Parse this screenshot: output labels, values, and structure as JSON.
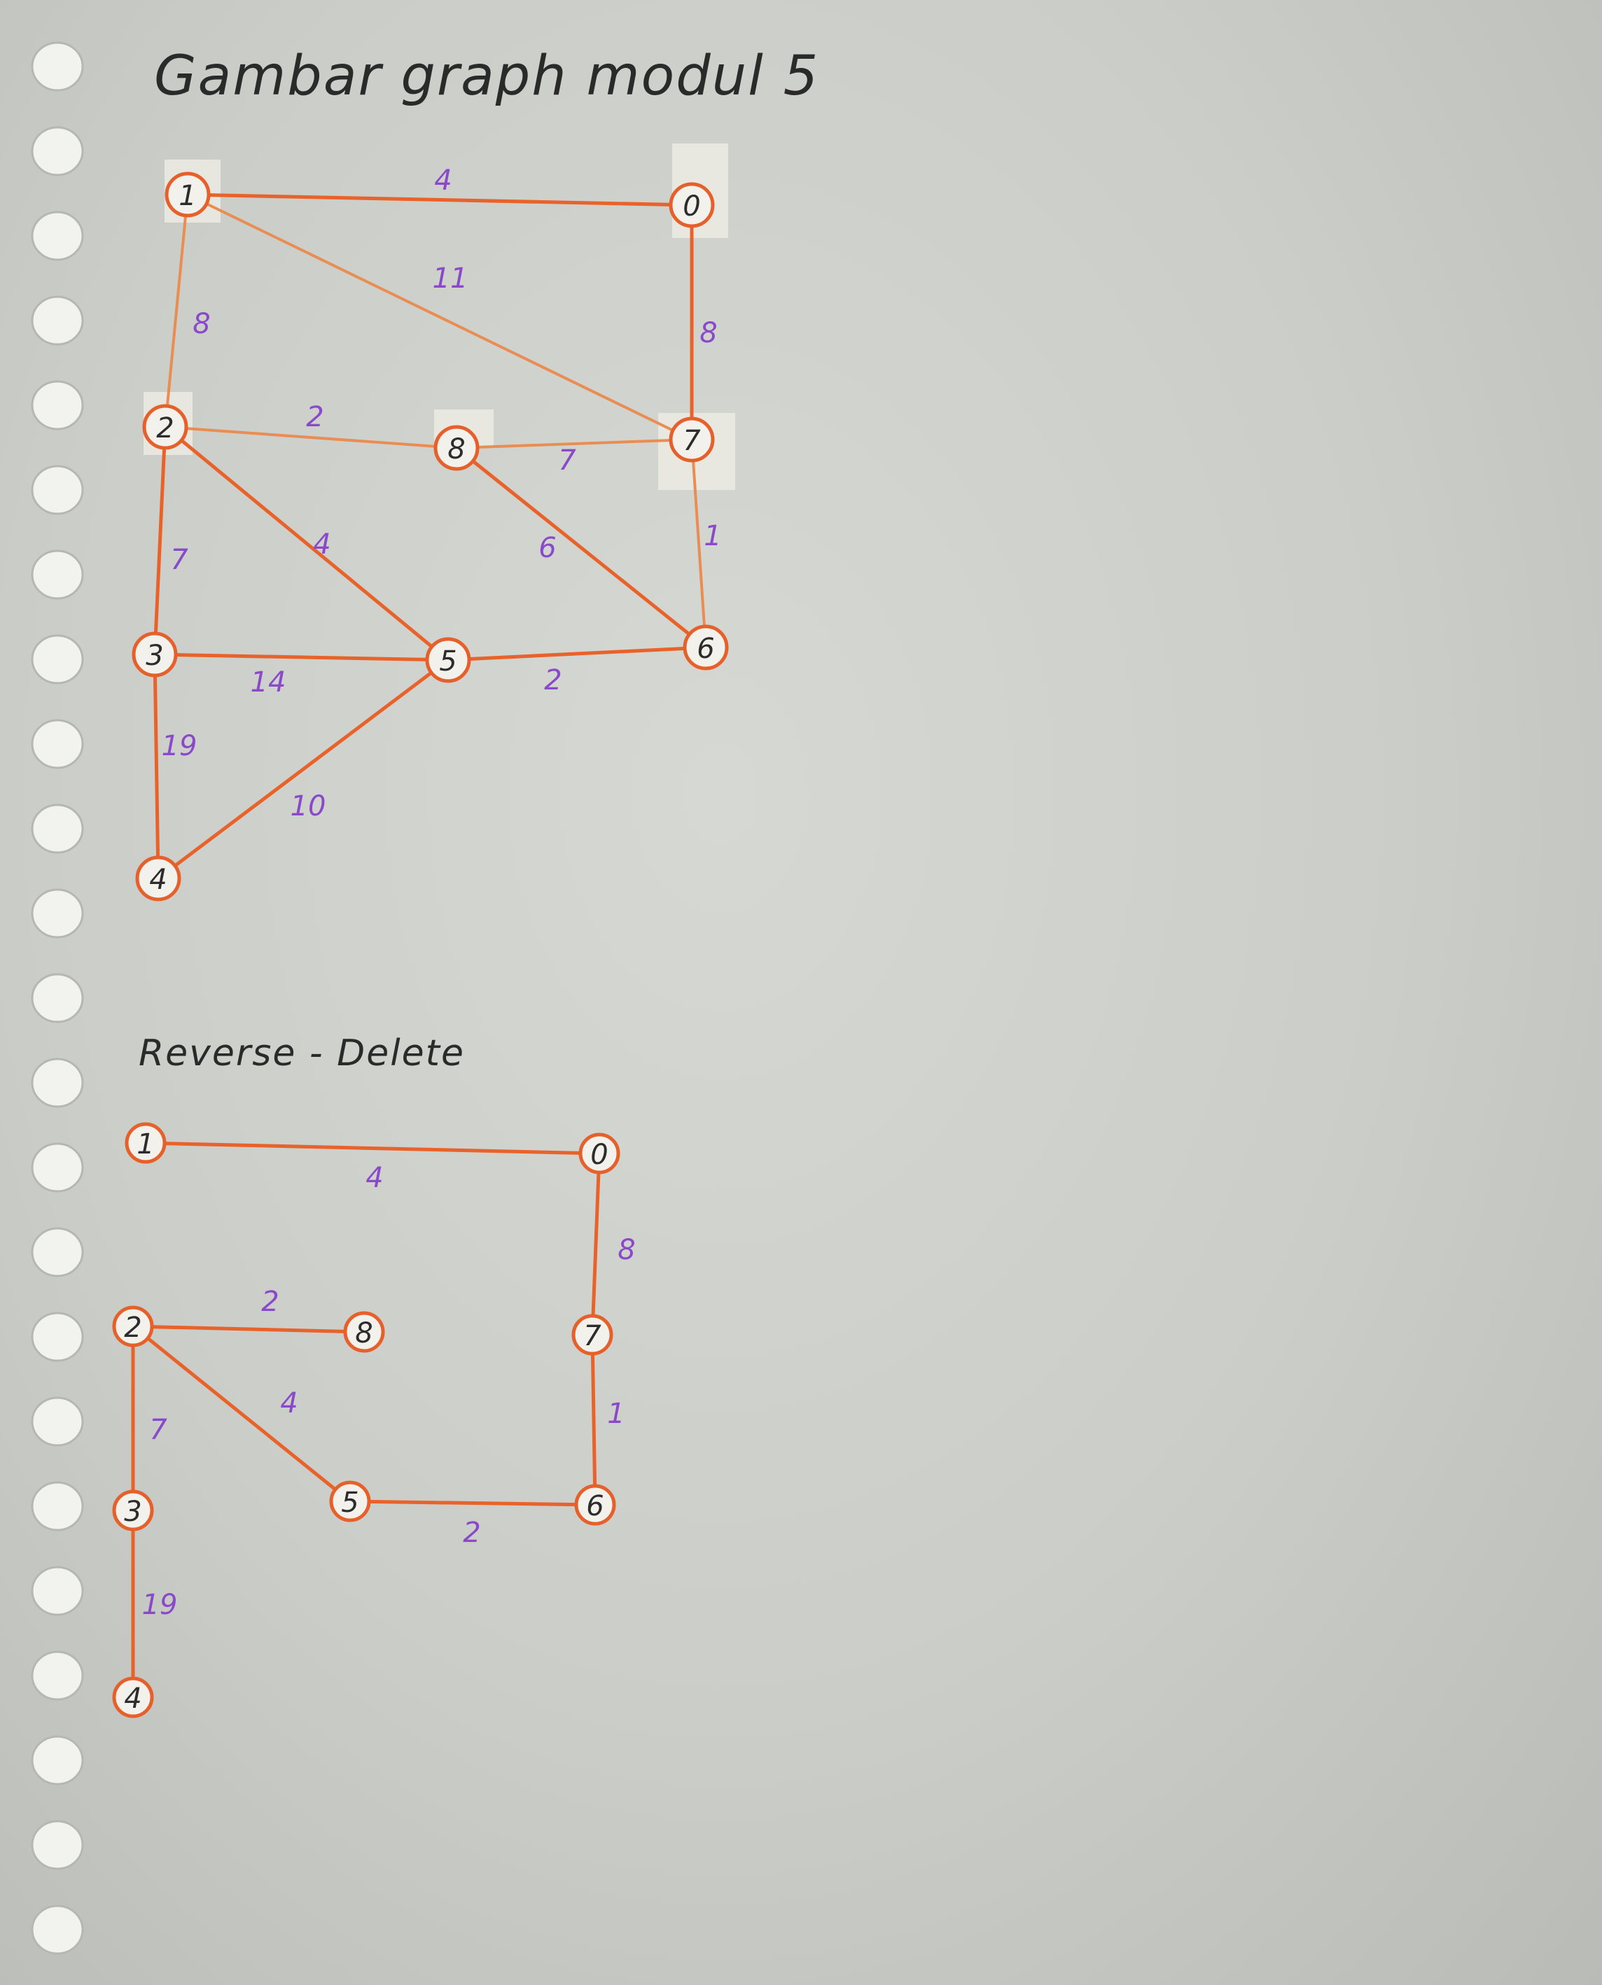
{
  "title": "Gambar graph modul 5",
  "section2_title": "Reverse - Delete",
  "graph1": {
    "nodes": [
      {
        "id": "1",
        "label": "1"
      },
      {
        "id": "0",
        "label": "0"
      },
      {
        "id": "2",
        "label": "2"
      },
      {
        "id": "8",
        "label": "8"
      },
      {
        "id": "7",
        "label": "7"
      },
      {
        "id": "3",
        "label": "3"
      },
      {
        "id": "5",
        "label": "5"
      },
      {
        "id": "6",
        "label": "6"
      },
      {
        "id": "4",
        "label": "4"
      }
    ],
    "edges": [
      {
        "from": "1",
        "to": "0",
        "weight": "4"
      },
      {
        "from": "1",
        "to": "7",
        "weight": "11"
      },
      {
        "from": "1",
        "to": "2",
        "weight": "8"
      },
      {
        "from": "0",
        "to": "7",
        "weight": "8"
      },
      {
        "from": "2",
        "to": "8",
        "weight": "2"
      },
      {
        "from": "8",
        "to": "7",
        "weight": "7"
      },
      {
        "from": "2",
        "to": "5",
        "weight": "4"
      },
      {
        "from": "8",
        "to": "6",
        "weight": "6"
      },
      {
        "from": "7",
        "to": "6",
        "weight": "1"
      },
      {
        "from": "2",
        "to": "3",
        "weight": "7"
      },
      {
        "from": "3",
        "to": "5",
        "weight": "14"
      },
      {
        "from": "5",
        "to": "6",
        "weight": "2"
      },
      {
        "from": "3",
        "to": "4",
        "weight": "19"
      },
      {
        "from": "4",
        "to": "5",
        "weight": "10"
      }
    ]
  },
  "graph2": {
    "nodes": [
      {
        "id": "1",
        "label": "1"
      },
      {
        "id": "0",
        "label": "0"
      },
      {
        "id": "2",
        "label": "2"
      },
      {
        "id": "8",
        "label": "8"
      },
      {
        "id": "7",
        "label": "7"
      },
      {
        "id": "3",
        "label": "3"
      },
      {
        "id": "5",
        "label": "5"
      },
      {
        "id": "6",
        "label": "6"
      },
      {
        "id": "4",
        "label": "4"
      }
    ],
    "edges": [
      {
        "from": "1",
        "to": "0",
        "weight": "4"
      },
      {
        "from": "0",
        "to": "7",
        "weight": "8"
      },
      {
        "from": "2",
        "to": "8",
        "weight": "2"
      },
      {
        "from": "2",
        "to": "5",
        "weight": "4"
      },
      {
        "from": "7",
        "to": "6",
        "weight": "1"
      },
      {
        "from": "2",
        "to": "3",
        "weight": "7"
      },
      {
        "from": "5",
        "to": "6",
        "weight": "2"
      },
      {
        "from": "3",
        "to": "4",
        "weight": "19"
      }
    ]
  },
  "colors": {
    "edge": "#e8622a",
    "node_border": "#e5602a",
    "weight_text": "#8a49c8",
    "ink": "#2a2a2a"
  }
}
